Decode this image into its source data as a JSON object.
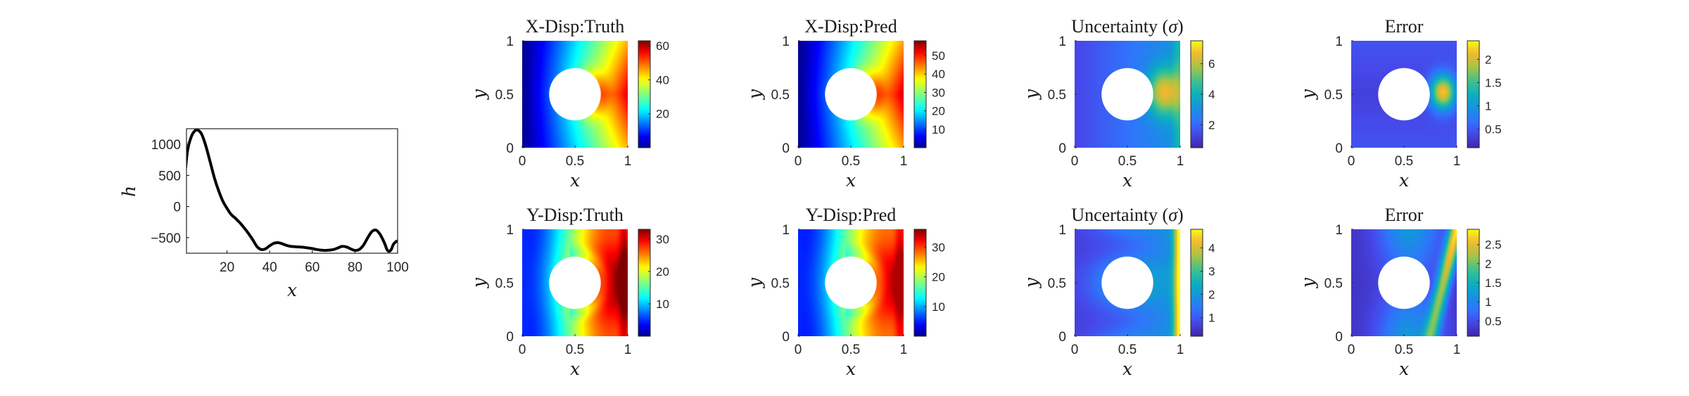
{
  "chart_data": [
    {
      "type": "line",
      "id": "h-profile",
      "xlabel": "x",
      "ylabel": "h",
      "xlim": [
        0,
        100
      ],
      "ylim": [
        -750,
        1250
      ],
      "xticks": [
        "20",
        "40",
        "60",
        "80",
        "100"
      ],
      "yticks": [
        "1000",
        "500",
        "0",
        "-500"
      ],
      "series": [
        {
          "x": [
            0,
            1.5,
            3,
            4.5,
            6,
            8,
            10,
            12,
            14,
            16,
            18,
            20,
            22,
            24,
            26,
            28,
            30,
            32,
            34,
            36,
            38,
            40,
            42,
            44,
            46,
            48,
            50,
            52,
            54,
            56,
            58,
            60,
            62,
            64,
            66,
            68,
            70,
            72,
            74,
            76,
            78,
            80,
            82,
            84,
            86,
            88,
            90,
            92,
            94,
            95,
            96,
            97,
            98,
            99,
            100
          ],
          "y": [
            620,
            900,
            1100,
            1200,
            1230,
            1170,
            980,
            730,
            470,
            260,
            90,
            -30,
            -130,
            -190,
            -260,
            -340,
            -430,
            -530,
            -640,
            -690,
            -680,
            -630,
            -590,
            -580,
            -600,
            -625,
            -640,
            -645,
            -650,
            -655,
            -665,
            -675,
            -690,
            -700,
            -705,
            -700,
            -690,
            -665,
            -640,
            -650,
            -680,
            -705,
            -690,
            -620,
            -500,
            -400,
            -380,
            -460,
            -600,
            -690,
            -720,
            -690,
            -610,
            -570,
            -550
          ]
        }
      ]
    },
    {
      "type": "heatmap",
      "id": "xdisp-truth",
      "title": "X-Disp:Truth",
      "xlabel": "x",
      "ylabel": "y",
      "xticks": [
        "0",
        "0.5",
        "1"
      ],
      "yticks": [
        "0",
        "0.5",
        "1"
      ],
      "colormap": "jet",
      "colorbar_range": [
        0,
        63
      ],
      "colorbar_ticks": [
        "20",
        "40",
        "60"
      ],
      "field": "x-disp-truth"
    },
    {
      "type": "heatmap",
      "id": "xdisp-pred",
      "title": "X-Disp:Pred",
      "xlabel": "x",
      "ylabel": "y",
      "xticks": [
        "0",
        "0.5",
        "1"
      ],
      "yticks": [
        "0",
        "0.5",
        "1"
      ],
      "colormap": "jet",
      "colorbar_range": [
        0,
        58
      ],
      "colorbar_ticks": [
        "10",
        "20",
        "30",
        "40",
        "50"
      ],
      "field": "x-disp-pred"
    },
    {
      "type": "heatmap",
      "id": "x-uncertainty",
      "title_text": "Uncertainty (",
      "title_symbol": "σ",
      "title_close": ")",
      "xlabel": "x",
      "ylabel": "y",
      "xticks": [
        "0",
        "0.5",
        "1"
      ],
      "yticks": [
        "0",
        "0.5",
        "1"
      ],
      "colormap": "parula",
      "colorbar_range": [
        0.5,
        7.5
      ],
      "colorbar_ticks": [
        "2",
        "4",
        "6"
      ],
      "field": "x-unc"
    },
    {
      "type": "heatmap",
      "id": "x-error",
      "title": "Error",
      "xlabel": "x",
      "ylabel": "y",
      "xticks": [
        "0",
        "0.5",
        "1"
      ],
      "yticks": [
        "0",
        "0.5",
        "1"
      ],
      "colormap": "parula",
      "colorbar_range": [
        0.1,
        2.4
      ],
      "colorbar_ticks": [
        "0.5",
        "1",
        "1.5",
        "2"
      ],
      "field": "x-err"
    },
    {
      "type": "heatmap",
      "id": "ydisp-truth",
      "title": "Y-Disp:Truth",
      "xlabel": "x",
      "ylabel": "y",
      "xticks": [
        "0",
        "0.5",
        "1"
      ],
      "yticks": [
        "0",
        "0.5",
        "1"
      ],
      "colormap": "jet",
      "colorbar_range": [
        0,
        33
      ],
      "colorbar_ticks": [
        "10",
        "20",
        "30"
      ],
      "field": "y-disp-truth"
    },
    {
      "type": "heatmap",
      "id": "ydisp-pred",
      "title": "Y-Disp:Pred",
      "xlabel": "x",
      "ylabel": "y",
      "xticks": [
        "0",
        "0.5",
        "1"
      ],
      "yticks": [
        "0",
        "0.5",
        "1"
      ],
      "colormap": "jet",
      "colorbar_range": [
        0,
        36
      ],
      "colorbar_ticks": [
        "10",
        "20",
        "30"
      ],
      "field": "y-disp-pred"
    },
    {
      "type": "heatmap",
      "id": "y-uncertainty",
      "title_text": "Uncertainty (",
      "title_symbol": "σ",
      "title_close": ")",
      "xlabel": "x",
      "ylabel": "y",
      "xticks": [
        "0",
        "0.5",
        "1"
      ],
      "yticks": [
        "0",
        "0.5",
        "1"
      ],
      "colormap": "parula",
      "colorbar_range": [
        0.2,
        4.8
      ],
      "colorbar_ticks": [
        "1",
        "2",
        "3",
        "4"
      ],
      "field": "y-unc"
    },
    {
      "type": "heatmap",
      "id": "y-error",
      "title": "Error",
      "xlabel": "x",
      "ylabel": "y",
      "xticks": [
        "0",
        "0.5",
        "1"
      ],
      "yticks": [
        "0",
        "0.5",
        "1"
      ],
      "colormap": "parula",
      "colorbar_range": [
        0.1,
        2.9
      ],
      "colorbar_ticks": [
        "0.5",
        "1",
        "1.5",
        "2",
        "2.5"
      ],
      "field": "y-err"
    }
  ],
  "colors": {
    "axis": "#262626",
    "line": "#000000",
    "hole": "#ffffff"
  }
}
